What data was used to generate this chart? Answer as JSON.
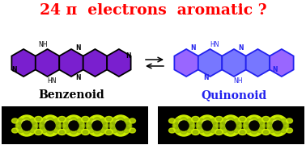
{
  "title": "24 π  electrons  aromatic ?",
  "title_color": "#ff0000",
  "title_fontsize": 13.5,
  "title_fontweight": "bold",
  "bg_color": "#ffffff",
  "label_left": "Benzenoid",
  "label_left_color": "#000000",
  "label_right": "Quinonoid",
  "label_right_color": "#2222ee",
  "label_fontsize": 10,
  "mol_left_purp": "#7a1fcf",
  "mol_left_purp_bright": "#9933ff",
  "mol_line_left": "#000000",
  "mol_right_blue_fill": "#7777ff",
  "mol_right_purp": "#9966ff",
  "mol_line_right": "#2222ee",
  "yellow_green": "#ccee00",
  "dark_green": "#335500",
  "black": "#000000"
}
